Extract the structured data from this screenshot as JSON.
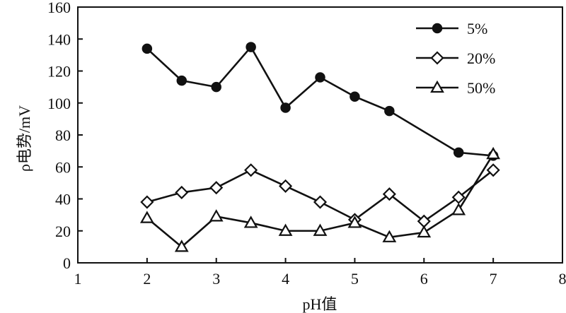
{
  "chart_data": {
    "type": "line",
    "title": "",
    "xlabel": "pH值",
    "ylabel": "ρ电势/mV",
    "xlim": [
      1,
      8
    ],
    "ylim": [
      0,
      160
    ],
    "xticks": [
      "1",
      "2",
      "3",
      "4",
      "5",
      "6",
      "7",
      "8"
    ],
    "yticks": [
      "0",
      "20",
      "40",
      "60",
      "80",
      "100",
      "120",
      "140",
      "160"
    ],
    "grid": false,
    "legend_position": "top-right",
    "x": [
      2,
      2.5,
      3,
      3.5,
      4,
      4.5,
      5,
      5.5,
      6,
      6.5,
      7
    ],
    "series": [
      {
        "name": "5%",
        "marker": "filled-circle",
        "color": "#111111",
        "x": [
          2,
          2.5,
          3,
          3.5,
          4,
          4.5,
          5,
          5.5,
          6.5,
          7
        ],
        "values": [
          134,
          114,
          110,
          135,
          97,
          116,
          104,
          95,
          69,
          67
        ]
      },
      {
        "name": "20%",
        "marker": "open-diamond",
        "color": "#111111",
        "x": [
          2,
          2.5,
          3,
          3.5,
          4,
          4.5,
          5,
          5.5,
          6,
          6.5,
          7
        ],
        "values": [
          38,
          44,
          47,
          58,
          48,
          38,
          27,
          43,
          26,
          41,
          58
        ]
      },
      {
        "name": "50%",
        "marker": "open-triangle",
        "color": "#111111",
        "x": [
          2,
          2.5,
          3,
          3.5,
          4,
          4.5,
          5,
          5.5,
          6,
          6.5,
          7
        ],
        "values": [
          28,
          10,
          29,
          25,
          20,
          20,
          25,
          16,
          19,
          33,
          68
        ]
      }
    ]
  }
}
